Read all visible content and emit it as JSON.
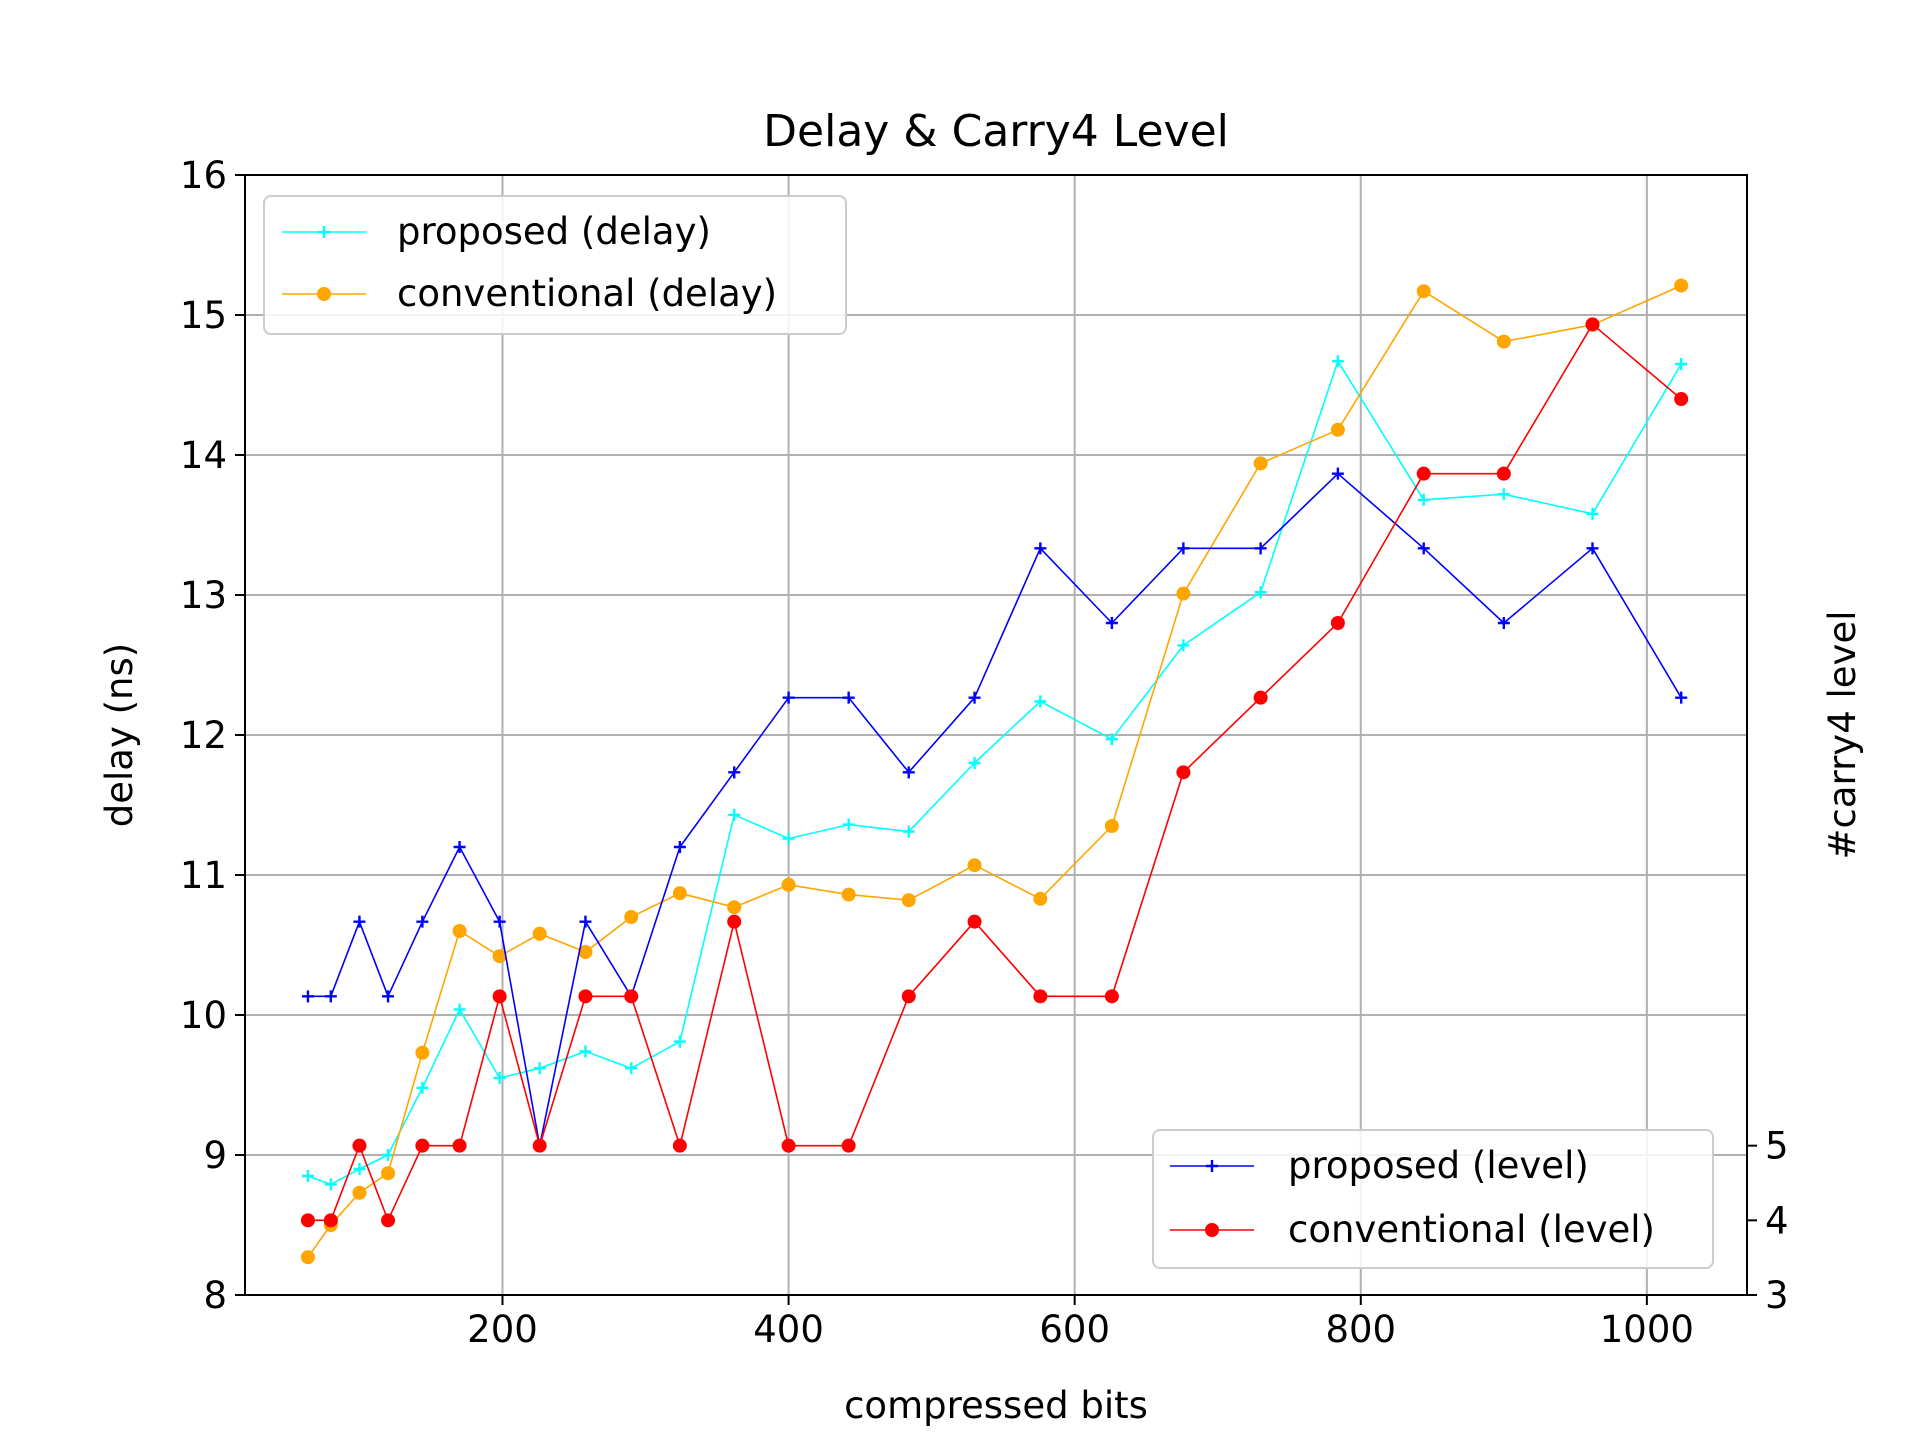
{
  "chart_data": {
    "type": "line",
    "title": "Delay & Carry4 Level",
    "xlabel": "compressed bits",
    "ylabel": "delay (ns)",
    "y2label": "#carry4 level",
    "xlim": [
      20,
      1070
    ],
    "ylim": [
      8,
      16
    ],
    "y2lim": [
      3,
      18
    ],
    "x_ticks": [
      200,
      400,
      600,
      800,
      1000
    ],
    "y_ticks": [
      8,
      9,
      10,
      11,
      12,
      13,
      14,
      15,
      16
    ],
    "y2_ticks": [
      3,
      4,
      5
    ],
    "grid": true,
    "legend_left_placement": "upper-left",
    "legend_right_placement": "lower-right",
    "x": [
      64,
      80,
      100,
      120,
      144,
      170,
      198,
      226,
      258,
      290,
      324,
      362,
      400,
      442,
      484,
      530,
      576,
      626,
      676,
      730,
      784,
      844,
      900,
      962,
      1024
    ],
    "series": [
      {
        "name": "proposed (delay)",
        "axis": "left",
        "color": "#00ffff",
        "marker": "plus",
        "values": [
          8.85,
          8.79,
          8.9,
          9.0,
          9.48,
          10.04,
          9.55,
          9.62,
          9.74,
          9.62,
          9.81,
          11.43,
          11.26,
          11.36,
          11.31,
          11.8,
          12.24,
          11.97,
          12.64,
          13.02,
          14.67,
          13.68,
          13.72,
          13.58,
          14.65
        ]
      },
      {
        "name": "conventional (delay)",
        "axis": "left",
        "color": "#ffa500",
        "marker": "dot",
        "values": [
          8.27,
          8.5,
          8.73,
          8.87,
          9.73,
          10.6,
          10.42,
          10.58,
          10.45,
          10.7,
          10.87,
          10.77,
          10.93,
          10.86,
          10.82,
          11.07,
          10.83,
          11.35,
          13.01,
          13.94,
          14.18,
          15.17,
          14.81,
          14.93,
          15.21
        ]
      },
      {
        "name": "proposed (level)",
        "axis": "right",
        "color": "#0000ff",
        "marker": "plus",
        "values": [
          7,
          7,
          8,
          7,
          8,
          9,
          8,
          5,
          8,
          7,
          9,
          10,
          11,
          11,
          10,
          11,
          13,
          12,
          13,
          13,
          14,
          13,
          12,
          13,
          11
        ]
      },
      {
        "name": "conventional (level)",
        "axis": "right",
        "color": "#ff0000",
        "marker": "dot",
        "values": [
          4,
          4,
          5,
          4,
          5,
          5,
          7,
          5,
          7,
          7,
          5,
          8,
          5,
          5,
          7,
          8,
          7,
          7,
          10,
          11,
          12,
          14,
          14,
          16,
          15
        ]
      }
    ]
  }
}
